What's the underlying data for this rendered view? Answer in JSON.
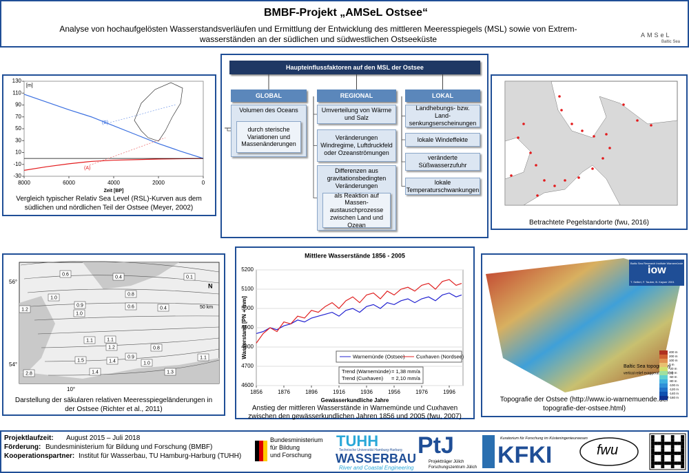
{
  "header": {
    "title": "BMBF-Projekt „AMSeL Ostsee“",
    "subtitle_lines": [
      "Analyse von hochaufgelösten Wasserstandsverläufen und Ermittlung der Entwicklung des mittleren Meeresspiegels (MSL) sowie von Extrem-",
      "wasserständen an der südlichen und südwestlichen Ostseeküste"
    ],
    "logo": {
      "name": "AMSeL",
      "tagline": "Baltic Sea"
    }
  },
  "chart_data": [
    {
      "type": "line",
      "y_unit": "[m]",
      "xlabel": "Zeit [BP]",
      "x": [
        8000,
        7000,
        6000,
        5000,
        4000,
        3000,
        2000,
        1000,
        0
      ],
      "series": [
        {
          "name": "(A)",
          "color": "#e31a1c",
          "values": [
            -20,
            -14,
            -9,
            -5,
            -3,
            -2,
            -1,
            -0.5,
            0
          ]
        },
        {
          "name": "(B)",
          "color": "#3a6fe0",
          "values": [
            108,
            95,
            82,
            70,
            55,
            40,
            25,
            12,
            0
          ]
        }
      ],
      "xlim": [
        8000,
        0
      ],
      "ylim": [
        -30,
        130
      ],
      "xticks": [
        8000,
        6000,
        4000,
        2000,
        0
      ],
      "yticks": [
        130,
        110,
        90,
        70,
        50,
        30,
        10,
        -10,
        -30
      ],
      "grid": false,
      "caption_lines": [
        "Vergleich typischer Relativ Sea Level (RSL)-Kurven aus dem",
        "südlichen und nördlichen Teil der Ostsee (Meyer, 2002)"
      ]
    },
    {
      "type": "line",
      "title": "Mittlere Wasserstände 1856 - 2005",
      "ylabel": "Wasserstand [PN + mm]",
      "xlabel": "Gewässerkundliche Jahre",
      "x": [
        1856,
        1861,
        1866,
        1871,
        1876,
        1881,
        1886,
        1891,
        1896,
        1901,
        1906,
        1911,
        1916,
        1921,
        1926,
        1931,
        1936,
        1941,
        1946,
        1951,
        1956,
        1961,
        1966,
        1971,
        1976,
        1981,
        1986,
        1991,
        1996,
        2001,
        2005
      ],
      "series": [
        {
          "name": "Warnemünde (Ostsee)",
          "color": "#2020d0",
          "values": [
            4870,
            4880,
            4900,
            4890,
            4910,
            4920,
            4940,
            4930,
            4950,
            4960,
            4970,
            4980,
            4960,
            4990,
            5000,
            4980,
            5010,
            5020,
            5000,
            5030,
            5020,
            5040,
            5050,
            5030,
            5050,
            5060,
            5040,
            5070,
            5080,
            5060,
            5070
          ]
        },
        {
          "name": "Cuxhaven (Nordsee)",
          "color": "#e02020",
          "values": [
            4820,
            4870,
            4900,
            4880,
            4930,
            4920,
            4960,
            4950,
            4990,
            4980,
            5010,
            5030,
            5000,
            5040,
            5060,
            5030,
            5070,
            5080,
            5050,
            5090,
            5070,
            5100,
            5110,
            5090,
            5120,
            5130,
            5100,
            5140,
            5150,
            5120,
            5130
          ]
        }
      ],
      "xlim": [
        1856,
        2006
      ],
      "ylim": [
        4600,
        5200
      ],
      "xticks": [
        1856,
        1876,
        1896,
        1916,
        1936,
        1956,
        1976,
        1996
      ],
      "yticks": [
        4600,
        4700,
        4800,
        4900,
        5000,
        5100,
        5200
      ],
      "grid": true,
      "legend": "lower right",
      "trend": [
        {
          "label": "Trend (Warnemünde)",
          "value": "= 1,38 mm/a"
        },
        {
          "label": "Trend (Cuxhaven)",
          "value": "= 2,10 mm/a"
        }
      ],
      "caption_lines": [
        "Anstieg der mittleren Wasserstände in Warnemünde und Cuxhaven",
        "zwischen den gewässerkundlichen Jahren 1856 und 2005 (fwu, 2007)"
      ]
    }
  ],
  "diagram": {
    "title": "Haupteinflussfaktoren auf den MSL der Ostsee",
    "columns": [
      {
        "header": "GLOBAL",
        "boxes": [
          {
            "text": "Volumen des Oceans",
            "sub": "durch sterische Variationen und Massenänderungen"
          }
        ]
      },
      {
        "header": "REGIONAL",
        "boxes": [
          {
            "text": "Umverteilung von Wärme und Salz"
          },
          {
            "text": "Veränderungen Windregime, Luftdruckfeld oder Ozeanströmungen"
          },
          {
            "text": "Differenzen aus gravitationsbedingten Veränderungen",
            "sub": "als Reaktion auf Massen-austauschprozesse zwischen Land und Ozean"
          }
        ]
      },
      {
        "header": "LOKAL",
        "boxes": [
          {
            "text": "Landhebungs- bzw. Land-senkungserscheinungen"
          },
          {
            "text": "lokale Windeffekte"
          },
          {
            "text": "veränderte Süßwasserzufuhr"
          },
          {
            "text": "lokale Temperaturschwankungen"
          }
        ]
      }
    ]
  },
  "pegel_map": {
    "caption": "Betrachtete Pegelstandorte (fwu, 2016)"
  },
  "contour_map": {
    "labels": [
      "0.6",
      "0.4",
      "0.1",
      "1.0",
      "0.8",
      "1.2",
      "0.9",
      "0.6",
      "0.4",
      "1.0",
      "1.1",
      "1.1",
      "1.2",
      "0.9",
      "0.8",
      "1.5",
      "1.4",
      "1.0",
      "1.1",
      "1.4",
      "2.8",
      "1.3"
    ],
    "axis_labels": [
      "56°",
      "54°",
      "10°"
    ],
    "scale": "50 km",
    "north": "N",
    "caption_lines": [
      "Darstellung der säkularen relativen Meeresspiegeländerungen in",
      "der Ostsee (Richter et al., 2011)"
    ]
  },
  "topo": {
    "institute": "Baltic Sea Research Institute Warnemünde",
    "brand": "iow",
    "authors": "T. Seifert, F. Tauber, B. Kayser 2001",
    "name": "Baltic Sea topography",
    "exaggeration": "vertical relief exaggeration 100:1",
    "depth_labels": [
      "400 m",
      "200 m",
      "100 m",
      "0 m",
      "-20 m",
      "-40 m",
      "-60 m",
      "-80 m",
      "-100 m",
      "-120 m",
      "-140 m",
      "-160 m"
    ],
    "caption_lines": [
      "Topografie der Ostsee (http://www.io-warnemuende.de/",
      "topografie-der-ostsee.html)"
    ]
  },
  "footer": {
    "items": [
      {
        "key": "Projektlaufzeit:",
        "value": "August 2015 – Juli 2018"
      },
      {
        "key": "Förderung:",
        "value": "Bundesministerium für Bildung und Forschung (BMBF)"
      },
      {
        "key": "Kooperationspartner:",
        "value": "Institut für Wasserbau, TU Hamburg-Harburg (TUHH)"
      }
    ],
    "logos": {
      "bmbf": [
        "Bundesministerium",
        "für Bildung",
        "und Forschung"
      ],
      "tuhh": "TUHH",
      "tuhh_sub": "Technische Universität Hamburg-Harburg",
      "wasserbau": "WASSERBAU",
      "wasserbau_sub": "River and Coastal Engineering",
      "ptj": "PtJ",
      "ptj_sub": [
        "Projektträger Jülich",
        "Forschungszentrum Jülich"
      ],
      "kfki_sub": "Kuratorium für Forschung im Küsteningenieurwesen",
      "kfki": "KFKI",
      "fwu": "fwu"
    }
  }
}
